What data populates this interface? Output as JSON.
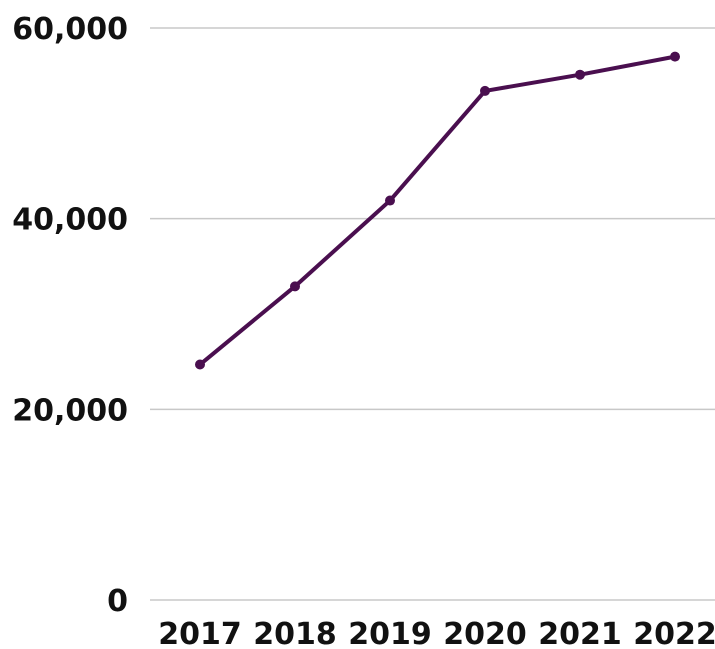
{
  "chart_data": {
    "type": "line",
    "title": "",
    "xlabel": "",
    "ylabel": "",
    "categories": [
      "2017",
      "2018",
      "2019",
      "2020",
      "2021",
      "2022"
    ],
    "series": [
      {
        "values": [
          24700,
          32900,
          41900,
          53400,
          55100,
          57000
        ]
      }
    ],
    "ylim": [
      0,
      60000
    ],
    "yticks": [
      0,
      20000,
      40000,
      60000
    ],
    "ytick_labels": [
      "0",
      "20,000",
      "40,000",
      "60,000"
    ],
    "grid": true,
    "legend": "none",
    "line_color": "#4a0f4f",
    "grid_color": "#c8c8c8"
  }
}
